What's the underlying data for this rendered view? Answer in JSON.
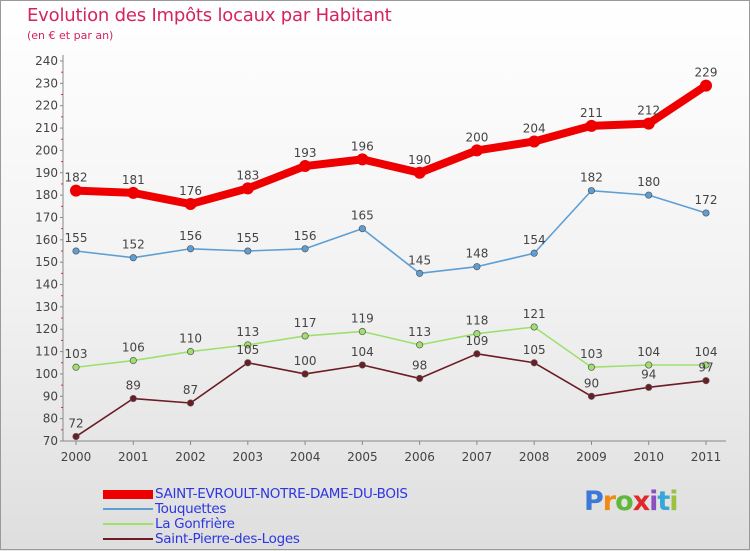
{
  "header": {
    "title": "Evolution des Impôts locaux par Habitant",
    "subtitle": "(en € et par an)"
  },
  "logo": {
    "letters": [
      "P",
      "r",
      "o",
      "x",
      "i",
      "t",
      "i"
    ],
    "colors": [
      "#3d78d6",
      "#f08a14",
      "#62b83a",
      "#e02a2a",
      "#8c4fc2",
      "#37a6d8",
      "#9ac23c"
    ]
  },
  "colors": {
    "axis": "#888888",
    "grid_tick": "#cc3355",
    "text": "#444444"
  },
  "chart_data": {
    "type": "line",
    "title": "Evolution des Impôts locaux par Habitant",
    "subtitle": "(en € et par an)",
    "x": [
      "2000",
      "2001",
      "2002",
      "2003",
      "2004",
      "2005",
      "2006",
      "2007",
      "2008",
      "2009",
      "2010",
      "2011"
    ],
    "ylim": [
      70,
      240
    ],
    "yticks": [
      70,
      80,
      90,
      100,
      110,
      120,
      130,
      140,
      150,
      160,
      170,
      180,
      190,
      200,
      210,
      220,
      230,
      240
    ],
    "legend_position": "bottom-left",
    "series": [
      {
        "name": "SAINT-EVROULT-NOTRE-DAME-DU-BOIS",
        "values": [
          182,
          181,
          176,
          183,
          193,
          196,
          190,
          200,
          204,
          211,
          212,
          229
        ],
        "color": "#ee0000",
        "emphasis": true
      },
      {
        "name": "Touquettes",
        "values": [
          155,
          152,
          156,
          155,
          156,
          165,
          145,
          148,
          154,
          182,
          180,
          172
        ],
        "color": "#5d9fd5",
        "emphasis": false
      },
      {
        "name": "La Gonfrière",
        "values": [
          103,
          106,
          110,
          113,
          117,
          119,
          113,
          118,
          121,
          103,
          104,
          104
        ],
        "color": "#9ee06e",
        "emphasis": false
      },
      {
        "name": "Saint-Pierre-des-Loges",
        "values": [
          72,
          89,
          87,
          105,
          100,
          104,
          98,
          109,
          105,
          90,
          94,
          97
        ],
        "color": "#6b1c24",
        "emphasis": false
      }
    ]
  }
}
